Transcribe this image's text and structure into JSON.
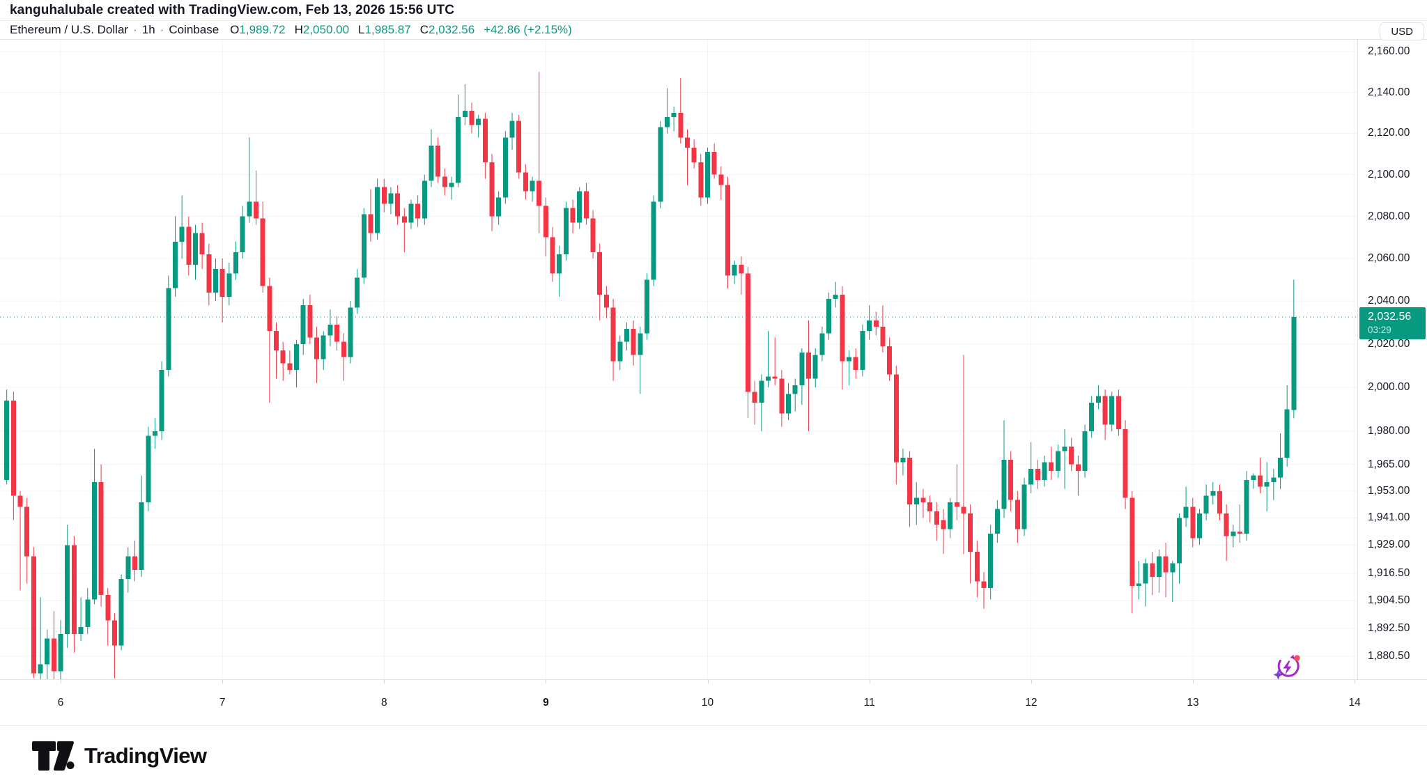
{
  "attribution": {
    "text": "kanguhalubale created with TradingView.com, Feb 13, 2026 15:56 UTC"
  },
  "header": {
    "symbol_title": "Ethereum / U.S. Dollar",
    "separator": "·",
    "interval": "1h",
    "exchange": "Coinbase",
    "ohlc": [
      {
        "label": "O",
        "value": "1,989.72"
      },
      {
        "label": "H",
        "value": "2,050.00"
      },
      {
        "label": "L",
        "value": "1,985.87"
      },
      {
        "label": "C",
        "value": "2,032.56"
      }
    ],
    "change_text": "+42.86 (+2.15%)",
    "currency_button": "USD"
  },
  "colors": {
    "up": "#089981",
    "down": "#f23645",
    "text": "#131722",
    "grid": "rgba(42,46,57,0.055)",
    "border": "#e0e3eb",
    "price_line": "#089981",
    "label_bg": "#089981"
  },
  "footer": {
    "logo_text": "TradingView"
  },
  "icons": {
    "ai_refresh_icon": "circular-arrow-lightning-sparkle",
    "logo_mark": "tradingview-tv-mark"
  },
  "chart_data": {
    "type": "candlestick",
    "title": "Ethereum / U.S. Dollar · 1h · Coinbase",
    "symbol": "ETH/USD",
    "interval": "1h",
    "exchange": "Coinbase",
    "currency": "USD",
    "time_range": "Feb 5, 2026 16:00 UTC to Feb 13, 2026 15:00 UTC",
    "grid": true,
    "y_axis": {
      "scale": "log",
      "side": "right",
      "ylim": [
        1870.5,
        2166.0
      ],
      "ticks": [
        2160,
        2140,
        2120,
        2100,
        2080,
        2060,
        2040,
        2020,
        2000,
        1980,
        1965,
        1953,
        1941,
        1929,
        1916.5,
        1904.5,
        1892.5,
        1880.5
      ]
    },
    "x_axis": {
      "labels": [
        {
          "text": "6",
          "bold": false
        },
        {
          "text": "7",
          "bold": false
        },
        {
          "text": "8",
          "bold": false
        },
        {
          "text": "9",
          "bold": true
        },
        {
          "text": "10",
          "bold": false
        },
        {
          "text": "11",
          "bold": false
        },
        {
          "text": "12",
          "bold": false
        },
        {
          "text": "13",
          "bold": false
        },
        {
          "text": "14",
          "bold": false
        }
      ]
    },
    "last": {
      "open": 1989.72,
      "high": 2050.0,
      "low": 1985.87,
      "close": 2032.56,
      "price_label": "2,032.56",
      "countdown": "03:29",
      "change": "+42.86 (+2.15%)"
    },
    "candles_format": [
      "open",
      "high",
      "low",
      "close"
    ],
    "candles": [
      [
        1958,
        1999,
        1956,
        1994
      ],
      [
        1994,
        1998,
        1940,
        1951
      ],
      [
        1951,
        1953,
        1909,
        1946
      ],
      [
        1946,
        1950,
        1912,
        1924
      ],
      [
        1924,
        1928,
        1871,
        1873
      ],
      [
        1873,
        1906,
        1870,
        1877
      ],
      [
        1877,
        1892,
        1870,
        1888
      ],
      [
        1888,
        1900,
        1870,
        1874
      ],
      [
        1874,
        1896,
        1870,
        1890
      ],
      [
        1890,
        1938,
        1884,
        1929
      ],
      [
        1929,
        1933,
        1882,
        1890
      ],
      [
        1890,
        1906,
        1887,
        1893
      ],
      [
        1893,
        1910,
        1890,
        1905
      ],
      [
        1905,
        1972,
        1903,
        1957
      ],
      [
        1957,
        1965,
        1902,
        1907
      ],
      [
        1907,
        1910,
        1885,
        1896
      ],
      [
        1896,
        1899,
        1871,
        1885
      ],
      [
        1885,
        1916,
        1883,
        1914
      ],
      [
        1914,
        1928,
        1908,
        1924
      ],
      [
        1924,
        1931,
        1913,
        1918
      ],
      [
        1918,
        1960,
        1915,
        1948
      ],
      [
        1948,
        1982,
        1944,
        1978
      ],
      [
        1978,
        1986,
        1972,
        1980
      ],
      [
        1980,
        2012,
        1976,
        2008
      ],
      [
        2008,
        2052,
        2005,
        2046
      ],
      [
        2046,
        2080,
        2042,
        2068
      ],
      [
        2068,
        2090,
        2060,
        2075
      ],
      [
        2075,
        2080,
        2052,
        2057
      ],
      [
        2057,
        2076,
        2050,
        2072
      ],
      [
        2072,
        2077,
        2055,
        2062
      ],
      [
        2062,
        2067,
        2038,
        2044
      ],
      [
        2044,
        2060,
        2040,
        2055
      ],
      [
        2055,
        2060,
        2030,
        2042
      ],
      [
        2042,
        2058,
        2038,
        2053
      ],
      [
        2053,
        2068,
        2050,
        2063
      ],
      [
        2063,
        2085,
        2060,
        2080
      ],
      [
        2080,
        2118,
        2077,
        2087
      ],
      [
        2087,
        2102,
        2076,
        2079
      ],
      [
        2079,
        2087,
        2044,
        2047
      ],
      [
        2047,
        2051,
        1993,
        2026
      ],
      [
        2026,
        2030,
        2004,
        2017
      ],
      [
        2017,
        2021,
        2003,
        2011
      ],
      [
        2011,
        2017,
        2006,
        2008
      ],
      [
        2008,
        2022,
        2000,
        2020
      ],
      [
        2020,
        2041,
        2015,
        2038
      ],
      [
        2038,
        2043,
        2020,
        2023
      ],
      [
        2023,
        2028,
        2002,
        2013
      ],
      [
        2013,
        2026,
        2008,
        2024
      ],
      [
        2024,
        2036,
        2019,
        2029
      ],
      [
        2029,
        2033,
        2017,
        2021
      ],
      [
        2021,
        2025,
        2003,
        2014
      ],
      [
        2014,
        2040,
        2011,
        2037
      ],
      [
        2037,
        2055,
        2034,
        2051
      ],
      [
        2051,
        2084,
        2048,
        2081
      ],
      [
        2081,
        2093,
        2068,
        2072
      ],
      [
        2072,
        2098,
        2069,
        2094
      ],
      [
        2094,
        2098,
        2082,
        2086
      ],
      [
        2086,
        2094,
        2081,
        2091
      ],
      [
        2091,
        2095,
        2076,
        2080
      ],
      [
        2080,
        2084,
        2063,
        2077
      ],
      [
        2077,
        2088,
        2074,
        2086
      ],
      [
        2086,
        2090,
        2075,
        2079
      ],
      [
        2079,
        2100,
        2076,
        2097
      ],
      [
        2097,
        2122,
        2094,
        2114
      ],
      [
        2114,
        2118,
        2096,
        2099
      ],
      [
        2099,
        2103,
        2090,
        2094
      ],
      [
        2094,
        2099,
        2088,
        2096
      ],
      [
        2096,
        2139,
        2094,
        2128
      ],
      [
        2128,
        2144,
        2124,
        2131
      ],
      [
        2131,
        2135,
        2120,
        2124
      ],
      [
        2124,
        2129,
        2118,
        2127
      ],
      [
        2127,
        2130,
        2098,
        2106
      ],
      [
        2106,
        2110,
        2073,
        2080
      ],
      [
        2080,
        2092,
        2076,
        2089
      ],
      [
        2089,
        2121,
        2086,
        2118
      ],
      [
        2118,
        2130,
        2112,
        2126
      ],
      [
        2126,
        2129,
        2098,
        2101
      ],
      [
        2101,
        2105,
        2088,
        2092
      ],
      [
        2092,
        2099,
        2087,
        2097
      ],
      [
        2097,
        2150,
        2072,
        2085
      ],
      [
        2085,
        2089,
        2061,
        2070
      ],
      [
        2070,
        2075,
        2049,
        2053
      ],
      [
        2053,
        2066,
        2042,
        2062
      ],
      [
        2062,
        2087,
        2059,
        2084
      ],
      [
        2084,
        2088,
        2072,
        2077
      ],
      [
        2077,
        2094,
        2074,
        2092
      ],
      [
        2092,
        2096,
        2076,
        2079
      ],
      [
        2079,
        2083,
        2060,
        2063
      ],
      [
        2063,
        2067,
        2031,
        2043
      ],
      [
        2043,
        2047,
        2032,
        2037
      ],
      [
        2037,
        2041,
        2003,
        2012
      ],
      [
        2012,
        2024,
        2008,
        2021
      ],
      [
        2021,
        2030,
        2017,
        2027
      ],
      [
        2027,
        2031,
        2010,
        2015
      ],
      [
        2015,
        2028,
        1997,
        2025
      ],
      [
        2025,
        2053,
        2022,
        2050
      ],
      [
        2050,
        2090,
        2047,
        2087
      ],
      [
        2087,
        2126,
        2084,
        2123
      ],
      [
        2123,
        2142,
        2120,
        2128
      ],
      [
        2128,
        2133,
        2121,
        2130
      ],
      [
        2130,
        2147,
        2115,
        2118
      ],
      [
        2118,
        2122,
        2095,
        2113
      ],
      [
        2113,
        2117,
        2103,
        2106
      ],
      [
        2106,
        2110,
        2085,
        2089
      ],
      [
        2089,
        2113,
        2086,
        2111
      ],
      [
        2111,
        2115,
        2098,
        2100
      ],
      [
        2100,
        2104,
        2088,
        2095
      ],
      [
        2095,
        2099,
        2046,
        2052
      ],
      [
        2052,
        2059,
        2048,
        2057
      ],
      [
        2057,
        2061,
        2043,
        2053
      ],
      [
        2053,
        2056,
        1986,
        1998
      ],
      [
        1998,
        2003,
        1983,
        1993
      ],
      [
        1993,
        2006,
        1980,
        2003
      ],
      [
        2003,
        2026,
        2000,
        2005
      ],
      [
        2005,
        2023,
        2001,
        2004
      ],
      [
        2004,
        2008,
        1982,
        1988
      ],
      [
        1988,
        2002,
        1985,
        1997
      ],
      [
        1997,
        2004,
        1989,
        2001
      ],
      [
        2001,
        2018,
        1992,
        2016
      ],
      [
        2016,
        2031,
        1980,
        2004
      ],
      [
        2004,
        2018,
        2000,
        2015
      ],
      [
        2015,
        2028,
        2012,
        2025
      ],
      [
        2025,
        2044,
        2022,
        2041
      ],
      [
        2041,
        2049,
        2037,
        2043
      ],
      [
        2043,
        2047,
        1999,
        2012
      ],
      [
        2012,
        2017,
        2001,
        2014
      ],
      [
        2014,
        2018,
        2004,
        2008
      ],
      [
        2008,
        2029,
        2005,
        2026
      ],
      [
        2026,
        2038,
        2022,
        2031
      ],
      [
        2031,
        2035,
        2024,
        2028
      ],
      [
        2028,
        2038,
        2016,
        2019
      ],
      [
        2019,
        2023,
        2003,
        2006
      ],
      [
        2006,
        2010,
        1956,
        1966
      ],
      [
        1966,
        1972,
        1960,
        1968
      ],
      [
        1968,
        1971,
        1937,
        1947
      ],
      [
        1947,
        1957,
        1938,
        1950
      ],
      [
        1950,
        1954,
        1941,
        1948
      ],
      [
        1948,
        1951,
        1939,
        1944
      ],
      [
        1944,
        1948,
        1931,
        1938
      ],
      [
        1940,
        1945,
        1925,
        1936
      ],
      [
        1936,
        1950,
        1932,
        1948
      ],
      [
        1948,
        1965,
        1940,
        1946
      ],
      [
        1946,
        2015,
        1925,
        1943
      ],
      [
        1943,
        1947,
        1912,
        1926
      ],
      [
        1926,
        1931,
        1906,
        1913
      ],
      [
        1913,
        1917,
        1901,
        1910
      ],
      [
        1910,
        1938,
        1905,
        1934
      ],
      [
        1934,
        1949,
        1930,
        1945
      ],
      [
        1945,
        1985,
        1941,
        1967
      ],
      [
        1967,
        1971,
        1944,
        1949
      ],
      [
        1949,
        1953,
        1930,
        1936
      ],
      [
        1936,
        1959,
        1933,
        1956
      ],
      [
        1956,
        1975,
        1952,
        1963
      ],
      [
        1963,
        1967,
        1954,
        1958
      ],
      [
        1958,
        1969,
        1955,
        1966
      ],
      [
        1966,
        1973,
        1958,
        1962
      ],
      [
        1962,
        1974,
        1959,
        1971
      ],
      [
        1971,
        1981,
        1954,
        1973
      ],
      [
        1973,
        1977,
        1962,
        1965
      ],
      [
        1965,
        1969,
        1951,
        1962
      ],
      [
        1962,
        1983,
        1959,
        1980
      ],
      [
        1980,
        1996,
        1977,
        1993
      ],
      [
        1993,
        2001,
        1990,
        1996
      ],
      [
        1996,
        1999,
        1976,
        1983
      ],
      [
        1983,
        1998,
        1980,
        1996
      ],
      [
        1996,
        1999,
        1978,
        1981
      ],
      [
        1981,
        1985,
        1945,
        1950
      ],
      [
        1950,
        1953,
        1899,
        1911
      ],
      [
        1911,
        1922,
        1905,
        1912
      ],
      [
        1912,
        1923,
        1902,
        1921
      ],
      [
        1921,
        1926,
        1907,
        1915
      ],
      [
        1915,
        1927,
        1908,
        1924
      ],
      [
        1924,
        1930,
        1906,
        1917
      ],
      [
        1917,
        1922,
        1904,
        1921
      ],
      [
        1921,
        1943,
        1912,
        1941
      ],
      [
        1941,
        1955,
        1937,
        1946
      ],
      [
        1946,
        1950,
        1928,
        1932
      ],
      [
        1932,
        1945,
        1929,
        1943
      ],
      [
        1943,
        1956,
        1940,
        1951
      ],
      [
        1951,
        1957,
        1947,
        1953
      ],
      [
        1953,
        1956,
        1940,
        1943
      ],
      [
        1943,
        1947,
        1922,
        1933
      ],
      [
        1933,
        1938,
        1928,
        1935
      ],
      [
        1935,
        1947,
        1930,
        1934
      ],
      [
        1934,
        1962,
        1931,
        1958
      ],
      [
        1958,
        1961,
        1954,
        1960
      ],
      [
        1960,
        1968,
        1952,
        1955
      ],
      [
        1955,
        1966,
        1944,
        1957
      ],
      [
        1957,
        1963,
        1949,
        1959
      ],
      [
        1959,
        1979,
        1954,
        1968
      ],
      [
        1968,
        2001,
        1964,
        1990
      ],
      [
        1989.72,
        2050,
        1985.87,
        2032.56
      ]
    ]
  }
}
